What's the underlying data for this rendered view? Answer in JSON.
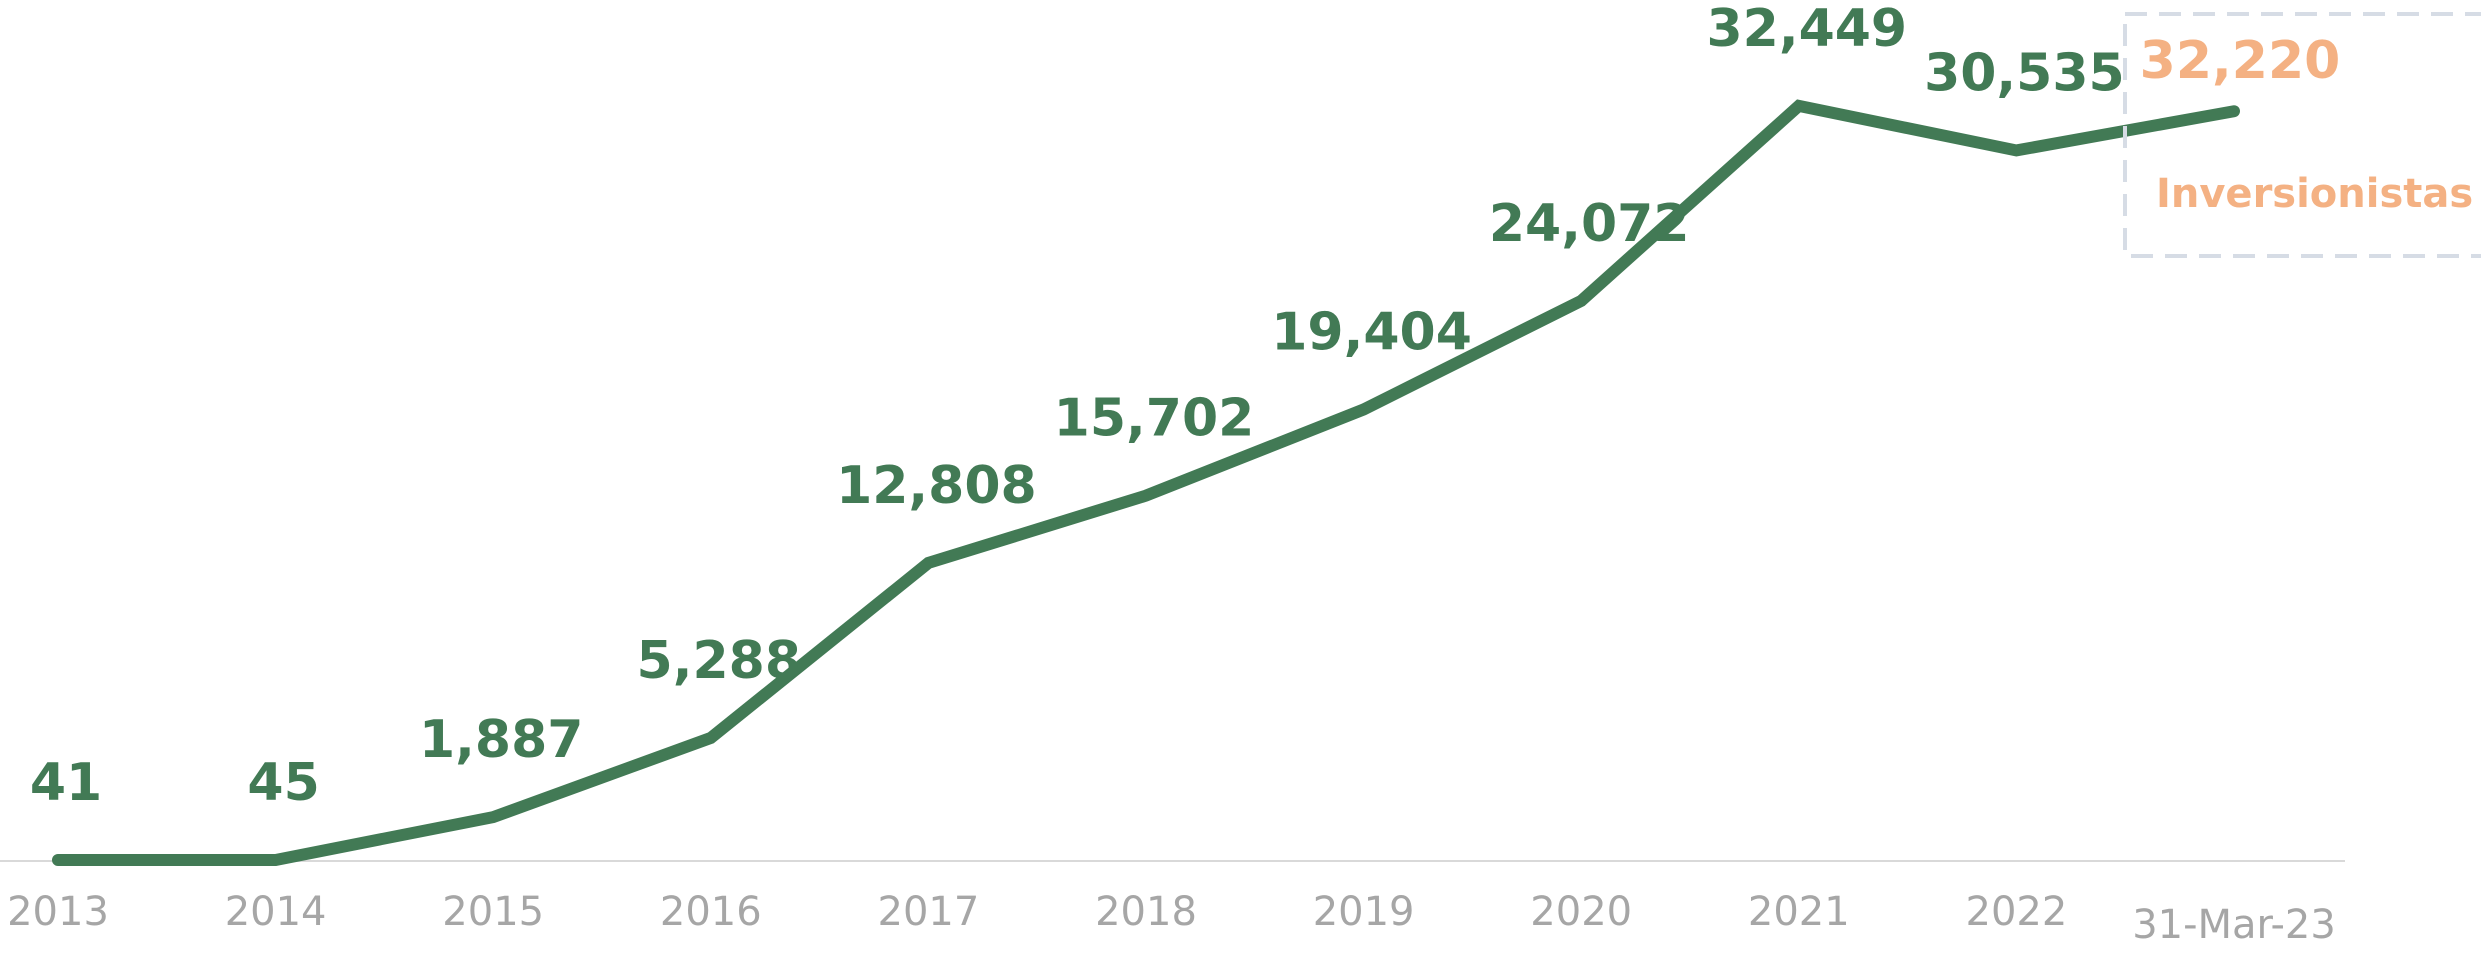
{
  "chart_data": {
    "type": "line",
    "categories": [
      "2013",
      "2014",
      "2015",
      "2016",
      "2017",
      "2018",
      "2019",
      "2020",
      "2021",
      "2022",
      "31-Mar-23"
    ],
    "series": [
      {
        "values": [
          41,
          45,
          1887,
          5288,
          12808,
          15702,
          19404,
          24072,
          32449,
          30535,
          32220
        ]
      }
    ],
    "data_labels": [
      "41",
      "45",
      "1,887",
      "5,288",
      "12,808",
      "15,702",
      "19,404",
      "24,072",
      "32,449",
      "30,535",
      "32,220"
    ],
    "ylim": [
      0,
      37000
    ],
    "grid": false,
    "callout": {
      "value": "32,220",
      "caption": "Inversionistas"
    },
    "colors": {
      "line": "#427a55",
      "labels": "#427a55",
      "ticks": "#a6a6a6",
      "axis": "#d9d9d9",
      "callout_text": "#f4b183",
      "callout_border": "#d6dce5"
    }
  }
}
